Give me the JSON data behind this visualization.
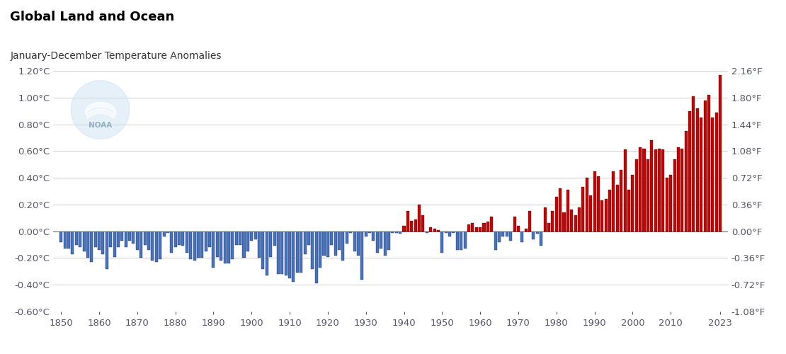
{
  "title": "Global Land and Ocean",
  "subtitle": "January-December Temperature Anomalies",
  "background_color": "#ffffff",
  "bar_edge_color": "#1a1a1a",
  "positive_bar_color": "#cc0000",
  "negative_bar_color": "#4472c4",
  "ylim": [
    -0.6,
    1.2
  ],
  "yticks_left": [
    -0.6,
    -0.4,
    -0.2,
    0.0,
    0.2,
    0.4,
    0.6,
    0.8,
    1.0,
    1.2
  ],
  "ytick_labels_left": [
    "-0.60°C",
    "-0.40°C",
    "-0.20°C",
    "0.00°C",
    "0.20°C",
    "0.40°C",
    "0.60°C",
    "0.80°C",
    "1.00°C",
    "1.20°C"
  ],
  "ytick_labels_right": [
    "-1.08°F",
    "-0.72°F",
    "-0.36°F",
    "0.00°F",
    "0.36°F",
    "0.72°F",
    "1.08°F",
    "1.44°F",
    "1.80°F",
    "2.16°F"
  ],
  "years": [
    1850,
    1851,
    1852,
    1853,
    1854,
    1855,
    1856,
    1857,
    1858,
    1859,
    1860,
    1861,
    1862,
    1863,
    1864,
    1865,
    1866,
    1867,
    1868,
    1869,
    1870,
    1871,
    1872,
    1873,
    1874,
    1875,
    1876,
    1877,
    1878,
    1879,
    1880,
    1881,
    1882,
    1883,
    1884,
    1885,
    1886,
    1887,
    1888,
    1889,
    1890,
    1891,
    1892,
    1893,
    1894,
    1895,
    1896,
    1897,
    1898,
    1899,
    1900,
    1901,
    1902,
    1903,
    1904,
    1905,
    1906,
    1907,
    1908,
    1909,
    1910,
    1911,
    1912,
    1913,
    1914,
    1915,
    1916,
    1917,
    1918,
    1919,
    1920,
    1921,
    1922,
    1923,
    1924,
    1925,
    1926,
    1927,
    1928,
    1929,
    1930,
    1931,
    1932,
    1933,
    1934,
    1935,
    1936,
    1937,
    1938,
    1939,
    1940,
    1941,
    1942,
    1943,
    1944,
    1945,
    1946,
    1947,
    1948,
    1949,
    1950,
    1951,
    1952,
    1953,
    1954,
    1955,
    1956,
    1957,
    1958,
    1959,
    1960,
    1961,
    1962,
    1963,
    1964,
    1965,
    1966,
    1967,
    1968,
    1969,
    1970,
    1971,
    1972,
    1973,
    1974,
    1975,
    1976,
    1977,
    1978,
    1979,
    1980,
    1981,
    1982,
    1983,
    1984,
    1985,
    1986,
    1987,
    1988,
    1989,
    1990,
    1991,
    1992,
    1993,
    1994,
    1995,
    1996,
    1997,
    1998,
    1999,
    2000,
    2001,
    2002,
    2003,
    2004,
    2005,
    2006,
    2007,
    2008,
    2009,
    2010,
    2011,
    2012,
    2013,
    2014,
    2015,
    2016,
    2017,
    2018,
    2019,
    2020,
    2021,
    2022,
    2023
  ],
  "anomalies": [
    -0.08,
    -0.13,
    -0.13,
    -0.17,
    -0.1,
    -0.12,
    -0.15,
    -0.2,
    -0.23,
    -0.12,
    -0.14,
    -0.17,
    -0.28,
    -0.12,
    -0.19,
    -0.12,
    -0.07,
    -0.12,
    -0.07,
    -0.09,
    -0.14,
    -0.2,
    -0.1,
    -0.14,
    -0.22,
    -0.23,
    -0.21,
    -0.04,
    -0.01,
    -0.16,
    -0.12,
    -0.1,
    -0.11,
    -0.16,
    -0.21,
    -0.22,
    -0.2,
    -0.2,
    -0.15,
    -0.12,
    -0.27,
    -0.19,
    -0.22,
    -0.24,
    -0.24,
    -0.21,
    -0.1,
    -0.1,
    -0.2,
    -0.15,
    -0.07,
    -0.06,
    -0.2,
    -0.28,
    -0.33,
    -0.19,
    -0.11,
    -0.32,
    -0.32,
    -0.33,
    -0.35,
    -0.38,
    -0.31,
    -0.31,
    -0.17,
    -0.1,
    -0.28,
    -0.39,
    -0.27,
    -0.18,
    -0.19,
    -0.1,
    -0.18,
    -0.14,
    -0.22,
    -0.09,
    -0.01,
    -0.15,
    -0.18,
    -0.36,
    -0.04,
    -0.01,
    -0.07,
    -0.16,
    -0.13,
    -0.18,
    -0.14,
    -0.01,
    -0.01,
    -0.02,
    0.04,
    0.15,
    0.08,
    0.09,
    0.2,
    0.12,
    -0.01,
    0.03,
    0.02,
    0.01,
    -0.16,
    -0.01,
    -0.04,
    -0.01,
    -0.14,
    -0.14,
    -0.13,
    0.05,
    0.06,
    0.03,
    0.03,
    0.06,
    0.07,
    0.11,
    -0.14,
    -0.08,
    -0.04,
    -0.04,
    -0.07,
    0.11,
    0.04,
    -0.08,
    0.02,
    0.15,
    -0.06,
    -0.02,
    -0.11,
    0.18,
    0.06,
    0.15,
    0.26,
    0.32,
    0.14,
    0.31,
    0.16,
    0.12,
    0.18,
    0.33,
    0.4,
    0.27,
    0.45,
    0.41,
    0.23,
    0.24,
    0.31,
    0.45,
    0.35,
    0.46,
    0.61,
    0.31,
    0.42,
    0.54,
    0.63,
    0.62,
    0.54,
    0.68,
    0.61,
    0.62,
    0.61,
    0.4,
    0.42,
    0.54,
    0.63,
    0.62,
    0.75,
    0.9,
    1.01,
    0.92,
    0.85,
    0.98,
    1.02,
    0.85,
    0.89,
    1.17
  ],
  "xlim": [
    1848,
    2025
  ],
  "xticks": [
    1850,
    1860,
    1870,
    1880,
    1890,
    1900,
    1910,
    1920,
    1930,
    1940,
    1950,
    1960,
    1970,
    1980,
    1990,
    2000,
    2010,
    2023
  ],
  "grid_color": "#cccccc",
  "title_fontsize": 13,
  "subtitle_fontsize": 10,
  "tick_fontsize": 9.5,
  "title_color": "#000000",
  "subtitle_color": "#333333",
  "tick_color": "#555566"
}
